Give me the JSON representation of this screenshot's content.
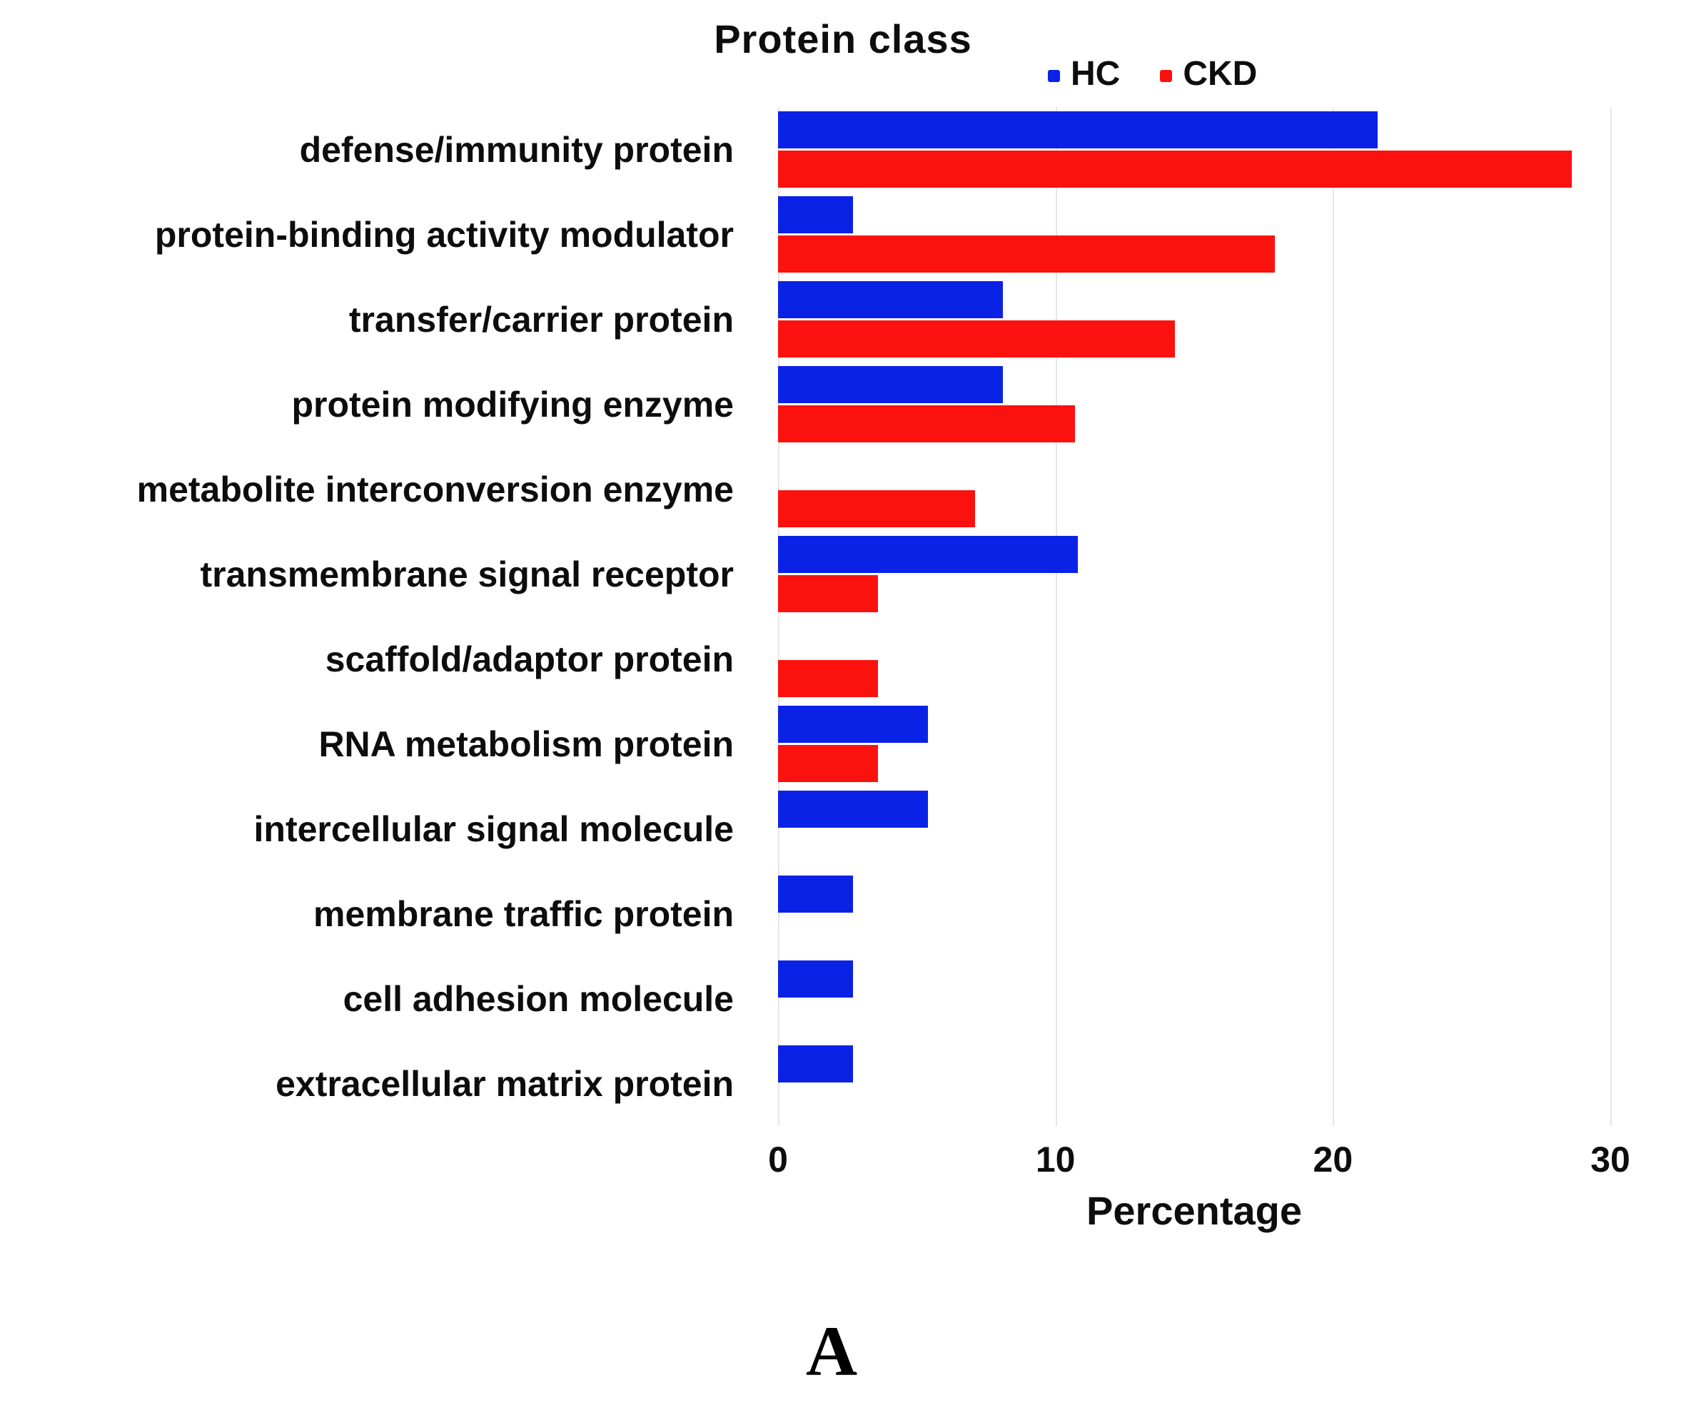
{
  "panel_label": "A",
  "chart_data": {
    "type": "bar",
    "orientation": "horizontal",
    "title": "Protein class",
    "xlabel": "Percentage",
    "xlim": [
      0,
      32.5
    ],
    "xticks": [
      0,
      10,
      20,
      30
    ],
    "grid": true,
    "legend_position": "top-right",
    "categories": [
      "defense/immunity protein",
      "protein-binding activity modulator",
      "transfer/carrier protein",
      "protein modifying enzyme",
      "metabolite interconversion enzyme",
      "transmembrane signal receptor",
      "scaffold/adaptor protein",
      "RNA metabolism protein",
      "intercellular signal molecule",
      "membrane traffic protein",
      "cell adhesion molecule",
      "extracellular matrix protein"
    ],
    "series": [
      {
        "name": "HC",
        "color": "#0a22e6",
        "values": [
          21.6,
          2.7,
          8.1,
          8.1,
          0,
          10.8,
          0,
          5.4,
          5.4,
          2.7,
          2.7,
          2.7
        ]
      },
      {
        "name": "CKD",
        "color": "#fb120e",
        "values": [
          28.6,
          17.9,
          14.3,
          10.7,
          7.1,
          3.6,
          3.6,
          3.6,
          0,
          0,
          0,
          0
        ]
      }
    ],
    "gridline_color": "#e6e6e6"
  }
}
